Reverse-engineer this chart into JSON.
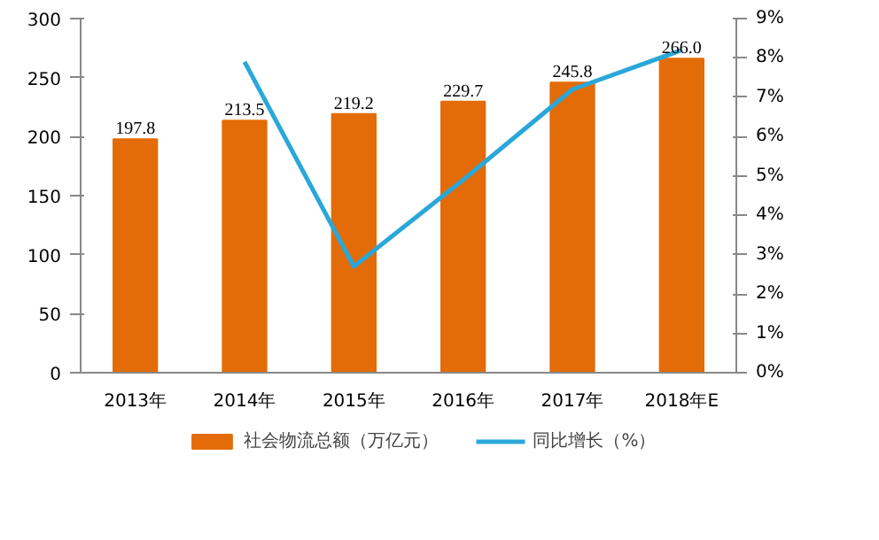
{
  "chart_data": {
    "type": "bar",
    "categories": [
      "2013年",
      "2014年",
      "2015年",
      "2016年",
      "2017年",
      "2018年E"
    ],
    "series": [
      {
        "name": "社会物流总额（万亿元）",
        "color": "#e36c09",
        "values": [
          197.8,
          213.5,
          219.2,
          229.7,
          245.8,
          266.0
        ],
        "value_labels": [
          "197.8",
          "213.5",
          "219.2",
          "229.7",
          "245.8",
          "266.0"
        ]
      },
      {
        "name": "同比增长（%）",
        "type": "line",
        "axis": "y2",
        "color": "#2aa7d9",
        "values": [
          null,
          7.9,
          2.7,
          4.9,
          7.2,
          8.2
        ]
      }
    ],
    "ylim": [
      0,
      300
    ],
    "yticks": [
      0,
      50,
      100,
      150,
      200,
      250,
      300
    ],
    "y2lim": [
      0,
      9
    ],
    "y2ticks": [
      {
        "value": 0,
        "label": "0%"
      },
      {
        "value": 1,
        "label": "1%"
      },
      {
        "value": 2,
        "label": "2%"
      },
      {
        "value": 3,
        "label": "3%"
      },
      {
        "value": 4,
        "label": "4%"
      },
      {
        "value": 5,
        "label": "5%"
      },
      {
        "value": 6,
        "label": "6%"
      },
      {
        "value": 7,
        "label": "7%"
      },
      {
        "value": 8,
        "label": "8%"
      },
      {
        "value": 9,
        "label": "9%"
      }
    ],
    "grid": false,
    "legend": "bottom"
  }
}
